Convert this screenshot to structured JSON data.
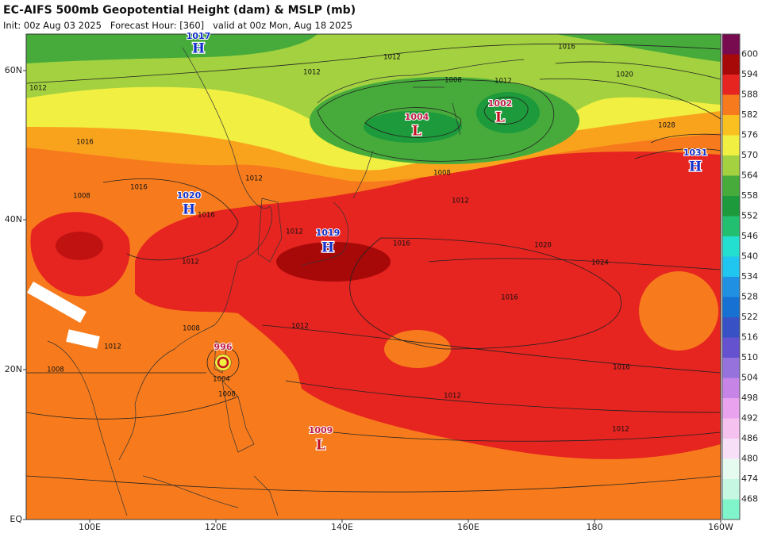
{
  "header": {
    "title": "EC-AIFS 500mb Geopotential Height (dam) & MSLP (mb)",
    "subtitle": "Init: 00z Aug 03 2025   Forecast Hour: [360]   valid at 00z Mon, Aug 18 2025"
  },
  "axes": {
    "longitude_labels": [
      "100E",
      "120E",
      "140E",
      "160E",
      "180",
      "160W"
    ],
    "latitude_labels": [
      "EQ",
      "20N",
      "40N",
      "60N"
    ]
  },
  "colorbar": {
    "levels": [
      468,
      474,
      480,
      486,
      492,
      498,
      504,
      510,
      516,
      522,
      528,
      534,
      540,
      546,
      552,
      558,
      564,
      570,
      576,
      582,
      588,
      594,
      600
    ],
    "colors": [
      "#80f5cc",
      "#c6f7e2",
      "#e6fbef",
      "#f7e0f7",
      "#f5c2ef",
      "#e8a2ee",
      "#c584e6",
      "#9572dc",
      "#6452cf",
      "#3852c6",
      "#1671d2",
      "#1f90e2",
      "#20c6ef",
      "#22dfd0",
      "#22bf70",
      "#1d9a3b",
      "#46ab3b",
      "#a3d13f",
      "#f0ef42",
      "#f9c01f",
      "#f77b1c",
      "#e62420",
      "#a70909",
      "#780a50"
    ]
  },
  "centers": [
    {
      "symbol": "H",
      "pressure": 1017
    },
    {
      "symbol": "H",
      "pressure": 1020
    },
    {
      "symbol": "H",
      "pressure": 1019
    },
    {
      "symbol": "L",
      "pressure": 1004
    },
    {
      "symbol": "L",
      "pressure": 1002
    },
    {
      "symbol": "H",
      "pressure": 1031
    },
    {
      "symbol": "L",
      "pressure": 1009
    }
  ],
  "tropical_cyclone": {
    "pressure": 996
  },
  "contour_labels": [
    1012,
    1016,
    1012,
    1012,
    1008,
    1012,
    1020,
    1028,
    1016,
    1008,
    1012,
    1012,
    1016,
    1008,
    1016,
    1012,
    1016,
    1020,
    1024,
    1016,
    1012,
    1012,
    1008,
    1016,
    1012,
    1012,
    1008,
    1004,
    1008,
    1012
  ]
}
